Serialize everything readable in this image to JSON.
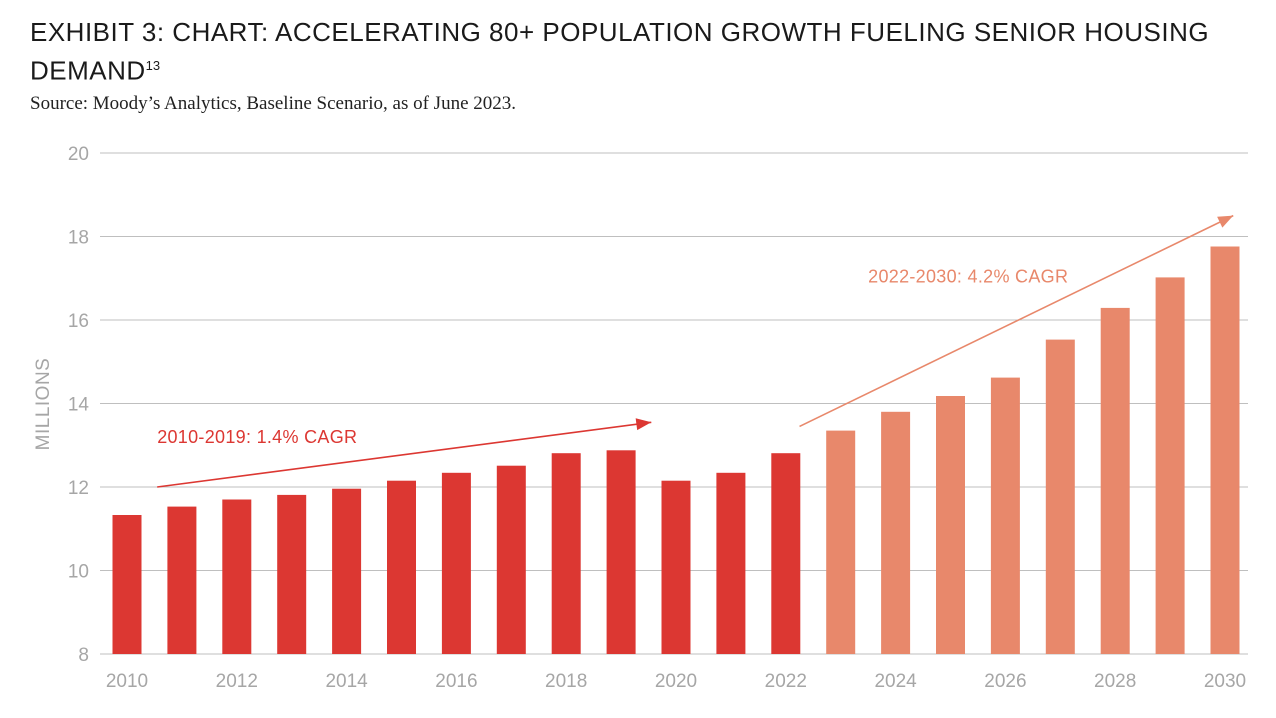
{
  "header": {
    "title": "EXHIBIT 3: CHART: ACCELERATING 80+ POPULATION GROWTH FUELING SENIOR HOUSING DEMAND",
    "footnote": "13",
    "source": "Source: Moody’s Analytics, Baseline Scenario, as of June 2023."
  },
  "colors": {
    "historical": "#dc3732",
    "forecast": "#e8886b",
    "grid": "#bfbfbf",
    "tick": "#a6a6a6"
  },
  "chart_data": {
    "type": "bar",
    "ylabel": "MILLIONS",
    "ylim": [
      8,
      20
    ],
    "yticks": [
      8,
      10,
      12,
      14,
      16,
      18,
      20
    ],
    "grid": true,
    "categories": [
      2010,
      2011,
      2012,
      2013,
      2014,
      2015,
      2016,
      2017,
      2018,
      2019,
      2020,
      2021,
      2022,
      2023,
      2024,
      2025,
      2026,
      2027,
      2028,
      2029,
      2030
    ],
    "xtick_labels": [
      "2010",
      "2012",
      "2014",
      "2016",
      "2018",
      "2020",
      "2022",
      "2024",
      "2026",
      "2028",
      "2030"
    ],
    "series": [
      {
        "values": [
          11.33,
          11.53,
          11.7,
          11.81,
          11.96,
          12.15,
          12.34,
          12.51,
          12.81,
          12.88,
          12.15,
          12.34,
          12.81,
          null,
          null,
          null,
          null,
          null,
          null,
          null,
          null
        ]
      },
      {
        "values": [
          null,
          null,
          null,
          null,
          null,
          null,
          null,
          null,
          null,
          null,
          null,
          null,
          null,
          13.35,
          13.8,
          14.18,
          14.62,
          15.53,
          16.29,
          17.02,
          17.76
        ]
      }
    ],
    "annotations": [
      {
        "text": "2010-2019: 1.4% CAGR",
        "color": "#dc3732",
        "from": [
          2010.55,
          12.0
        ],
        "to": [
          2019.55,
          13.55
        ],
        "text_at": [
          2010.55,
          13.05
        ]
      },
      {
        "text": "2022-2030: 4.2% CAGR",
        "color": "#e8886b",
        "from": [
          2022.25,
          13.45
        ],
        "to": [
          2030.15,
          18.5
        ],
        "text_at": [
          2023.5,
          16.9
        ]
      }
    ]
  }
}
